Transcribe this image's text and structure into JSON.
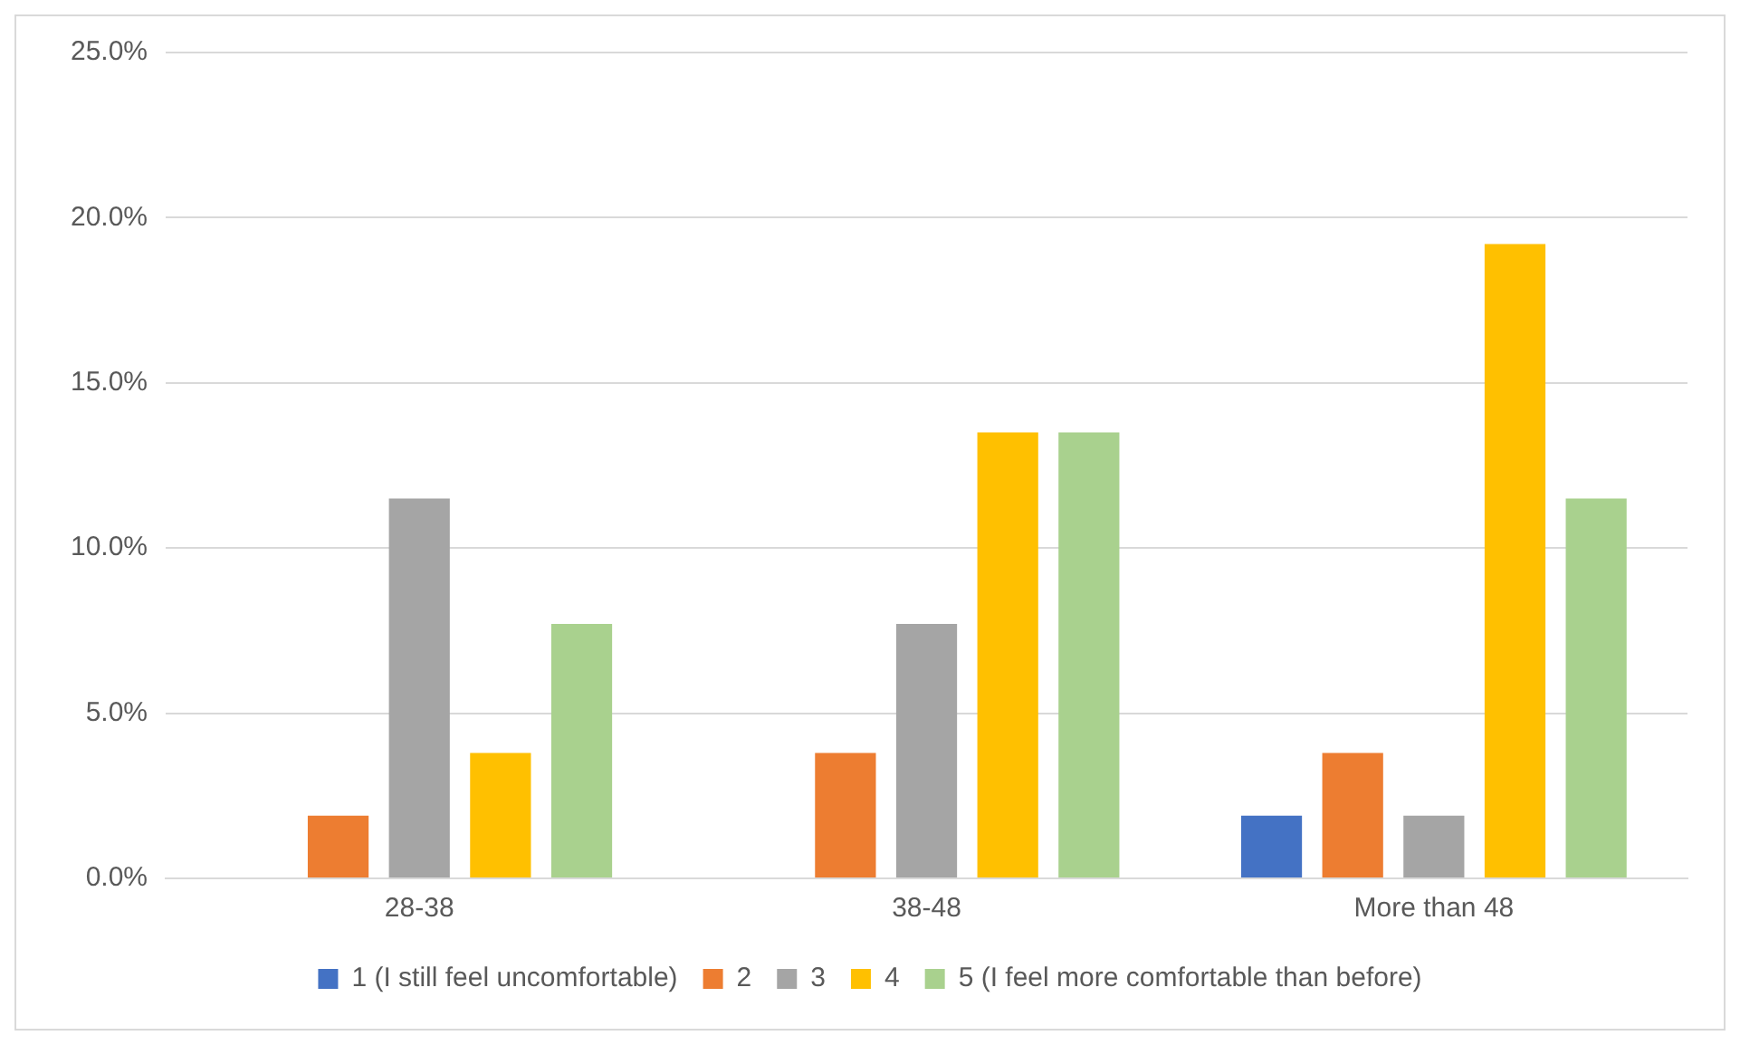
{
  "chart_data": {
    "type": "bar",
    "categories": [
      "28-38",
      "38-48",
      "More than 48"
    ],
    "series": [
      {
        "name": "1 (I still feel uncomfortable)",
        "color": "#4472c4",
        "values": [
          0,
          0,
          1.9
        ]
      },
      {
        "name": "2",
        "color": "#ed7d31",
        "values": [
          1.9,
          3.8,
          3.8
        ]
      },
      {
        "name": "3",
        "color": "#a5a5a5",
        "values": [
          11.5,
          7.7,
          1.9
        ]
      },
      {
        "name": "4",
        "color": "#ffc000",
        "values": [
          3.8,
          13.5,
          19.2
        ]
      },
      {
        "name": "5 (I feel more comfortable than before)",
        "color": "#a9d18e",
        "values": [
          7.7,
          13.5,
          11.5
        ]
      }
    ],
    "ylim": [
      0,
      25
    ],
    "yticks": [
      {
        "value": 0,
        "label": "0.0%"
      },
      {
        "value": 5,
        "label": "5.0%"
      },
      {
        "value": 10,
        "label": "10.0%"
      },
      {
        "value": 15,
        "label": "15.0%"
      },
      {
        "value": 20,
        "label": "20.0%"
      },
      {
        "value": 25,
        "label": "25.0%"
      }
    ],
    "grid": "y",
    "legend": "bottom"
  }
}
